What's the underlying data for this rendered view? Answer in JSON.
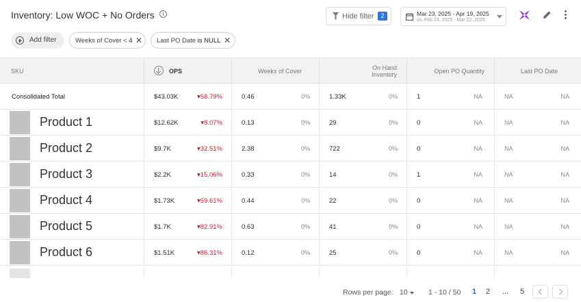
{
  "header": {
    "title": "Inventory: Low WOC + No Orders",
    "info_icon": "info-icon",
    "hide_filter_label": "Hide filter",
    "hide_filter_count": "2",
    "date_range": "Mar 23, 2025 - Apr 19, 2025",
    "date_compare": "vs. Feb 23, 2025 - Mar 22, 2025",
    "logo_color": "#8a2be2"
  },
  "filters": {
    "add_filter_label": "Add filter",
    "chips": [
      {
        "label": "Weeks of Cover <",
        "value": "4"
      },
      {
        "label": "Last PO Date",
        "value": "is NULL"
      }
    ]
  },
  "table": {
    "columns": [
      "SKU",
      "OPS",
      "Weeks of Cover",
      "On Hand Inventory",
      "Open PO Quantity",
      "Last PO Date"
    ],
    "total": {
      "label": "Consolidated Total",
      "ops": "$43.03K",
      "ops_change": "58.79%",
      "woc": "0.46",
      "woc_change": "0%",
      "onhand": "1.33K",
      "onhand_change": "0%",
      "openpo": "1",
      "openpo_extra": "NA",
      "lastpo": "NA",
      "lastpo_extra": "NA"
    },
    "rows": [
      {
        "sku": "Product 1",
        "ops": "$12.62K",
        "ops_change": "8.07%",
        "woc": "0.13",
        "woc_change": "0%",
        "onhand": "29",
        "onhand_change": "0%",
        "openpo": "0",
        "openpo_extra": "NA",
        "lastpo": "NA",
        "lastpo_extra": "NA"
      },
      {
        "sku": "Product 2",
        "ops": "$9.7K",
        "ops_change": "32.51%",
        "woc": "2.38",
        "woc_change": "0%",
        "onhand": "722",
        "onhand_change": "0%",
        "openpo": "0",
        "openpo_extra": "NA",
        "lastpo": "NA",
        "lastpo_extra": "NA"
      },
      {
        "sku": "Product 3",
        "ops": "$2.2K",
        "ops_change": "15.06%",
        "woc": "0.33",
        "woc_change": "0%",
        "onhand": "14",
        "onhand_change": "0%",
        "openpo": "1",
        "openpo_extra": "NA",
        "lastpo": "NA",
        "lastpo_extra": "NA"
      },
      {
        "sku": "Product 4",
        "ops": "$1.73K",
        "ops_change": "59.61%",
        "woc": "0.44",
        "woc_change": "0%",
        "onhand": "22",
        "onhand_change": "0%",
        "openpo": "0",
        "openpo_extra": "NA",
        "lastpo": "NA",
        "lastpo_extra": "NA"
      },
      {
        "sku": "Product 5",
        "ops": "$1.7K",
        "ops_change": "82.91%",
        "woc": "0.63",
        "woc_change": "0%",
        "onhand": "41",
        "onhand_change": "0%",
        "openpo": "0",
        "openpo_extra": "NA",
        "lastpo": "NA",
        "lastpo_extra": "NA"
      },
      {
        "sku": "Product 6",
        "ops": "$1.51K",
        "ops_change": "86.31%",
        "woc": "0.12",
        "woc_change": "0%",
        "onhand": "25",
        "onhand_change": "0%",
        "openpo": "0",
        "openpo_extra": "NA",
        "lastpo": "NA",
        "lastpo_extra": "NA"
      }
    ],
    "negative_color": "#d1182e"
  },
  "pagination": {
    "rows_per_page_label": "Rows per page:",
    "rows_per_page": "10",
    "range": "1 - 10 / 50",
    "pages": [
      "1",
      "2",
      "...",
      "5"
    ],
    "active_page": "1"
  }
}
